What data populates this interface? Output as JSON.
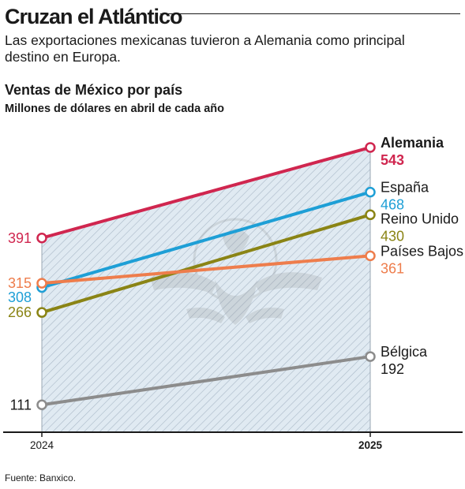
{
  "header": {
    "title": "Cruzan el Atlántico",
    "dek": "Las exportaciones mexicanas tuvieron a Alemania como principal destino en Europa."
  },
  "chart_data": {
    "type": "line",
    "title": "Ventas de México por país",
    "subtitle": "Millones de dólares en abril de cada año",
    "x": [
      "2024",
      "2025"
    ],
    "highlight_x": "2025",
    "series": [
      {
        "name": "Alemania",
        "values": [
          391,
          543
        ],
        "color": "#d0264f",
        "label_bold": true
      },
      {
        "name": "España",
        "values": [
          308,
          468
        ],
        "color": "#1e9fd6",
        "label_bold": false
      },
      {
        "name": "Reino Unido",
        "values": [
          266,
          430
        ],
        "color": "#8a8415",
        "label_bold": false
      },
      {
        "name": "Países Bajos",
        "values": [
          315,
          361
        ],
        "color": "#ee7d4c",
        "label_bold": false
      },
      {
        "name": "Bélgica",
        "values": [
          111,
          192
        ],
        "color": "#8c8c8c",
        "label_bold": false
      }
    ],
    "ylim": [
      65,
      625
    ],
    "shaded_area": "between 2024 and 2025 below the top series",
    "background_graphic": "faint eagle emblem watermark",
    "grid": false
  },
  "footer": {
    "source": "Fuente: Banxico."
  }
}
